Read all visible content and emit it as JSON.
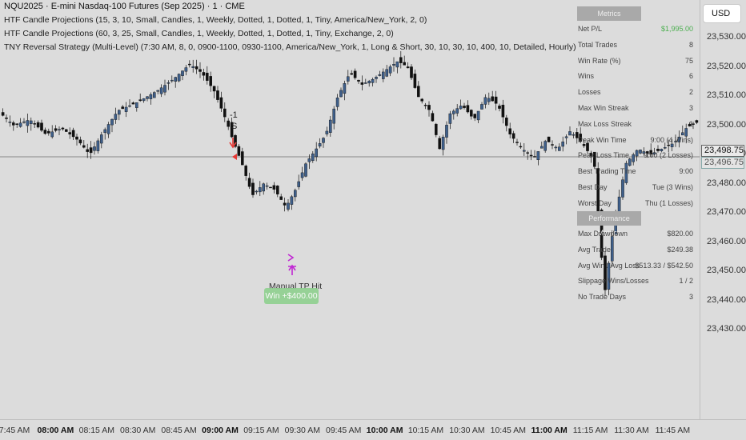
{
  "header": {
    "symbol_title": "NQU2025 · E-mini Nasdaq-100 Futures (Sep 2025) · 1 · CME",
    "indicators": [
      "HTF Candle Projections (15, 3, 10, Small, Candles, 1, Weekly, Dotted, 1, Dotted, 1, Tiny, America/New_York, 2, 0)",
      "HTF Candle Projections (60, 3, 25, Small, Candles, 1, Weekly, Dotted, 1, Dotted, 1, Tiny, Exchange, 2, 0)",
      "TNY Reversal Strategy (Multi-Level) (7:30 AM, 8, 0, 0900-1100, 0930-1100, America/New_York, 1, Long & Short, 30, 10, 30, 10, 400, 10, Detailed, Hourly)"
    ]
  },
  "currency_button": "USD",
  "price_axis": {
    "labels": [
      "23,530.00",
      "23,520.00",
      "23,510.00",
      "23,500.00",
      "23,490.00",
      "23,480.00",
      "23,470.00",
      "23,460.00",
      "23,450.00",
      "23,440.00",
      "23,430.00"
    ],
    "values": [
      23530,
      23520,
      23510,
      23500,
      23490,
      23480,
      23470,
      23460,
      23450,
      23440,
      23430
    ],
    "current_price": "23,498.75",
    "secondary_price": "23,496.75"
  },
  "time_axis": {
    "labels": [
      "7:45 AM",
      "08:00 AM",
      "08:15 AM",
      "08:30 AM",
      "08:45 AM",
      "09:00 AM",
      "09:15 AM",
      "09:30 AM",
      "09:45 AM",
      "10:00 AM",
      "10:15 AM",
      "10:30 AM",
      "10:45 AM",
      "11:00 AM",
      "11:15 AM",
      "11:30 AM",
      "11:45 AM"
    ],
    "bold": [
      false,
      true,
      false,
      false,
      false,
      true,
      false,
      false,
      false,
      true,
      false,
      false,
      false,
      true,
      false,
      false,
      false
    ]
  },
  "metrics": {
    "title": "Metrics",
    "rows": [
      {
        "label": "Net P/L",
        "value": "$1,995.00"
      },
      {
        "label": "Total Trades",
        "value": "8"
      },
      {
        "label": "Win Rate (%)",
        "value": "75"
      },
      {
        "label": "Wins",
        "value": "6"
      },
      {
        "label": "Losses",
        "value": "2"
      },
      {
        "label": "Max Win Streak",
        "value": "3"
      },
      {
        "label": "Max Loss Streak",
        "value": "1"
      },
      {
        "label": "Peak Win Time",
        "value": "9:00 (4 Wins)"
      },
      {
        "label": "Peak Loss Time",
        "value": "9:00 (2 Losses)"
      },
      {
        "label": "Best Trading Time",
        "value": "9:00"
      },
      {
        "label": "Best Day",
        "value": "Tue (3 Wins)"
      },
      {
        "label": "Worst Day",
        "value": "Thu (1 Losses)"
      }
    ],
    "performance_title": "Performance Metrics",
    "performance_rows": [
      {
        "label": "Max Drawdown",
        "value": "$820.00"
      },
      {
        "label": "Avg Trade",
        "value": "$249.38"
      },
      {
        "label": "Avg Win / Avg Loss",
        "value": "$513.33 / $542.50"
      },
      {
        "label": "Slippage Wins/Losses",
        "value": "1 / 2"
      },
      {
        "label": "No Trade Days",
        "value": "3"
      }
    ]
  },
  "annotations": {
    "signal_count": "-1",
    "signal_side": "S",
    "manual_tp": "Manual TP Hit",
    "win_badge": "Win +$400.00"
  },
  "colors": {
    "bull_candle": "#3f5f8a",
    "bear_candle": "#111111",
    "short_arrow": "#e53935",
    "long_marker": "#c026d3",
    "net_pl_green": "#4caf50"
  }
}
